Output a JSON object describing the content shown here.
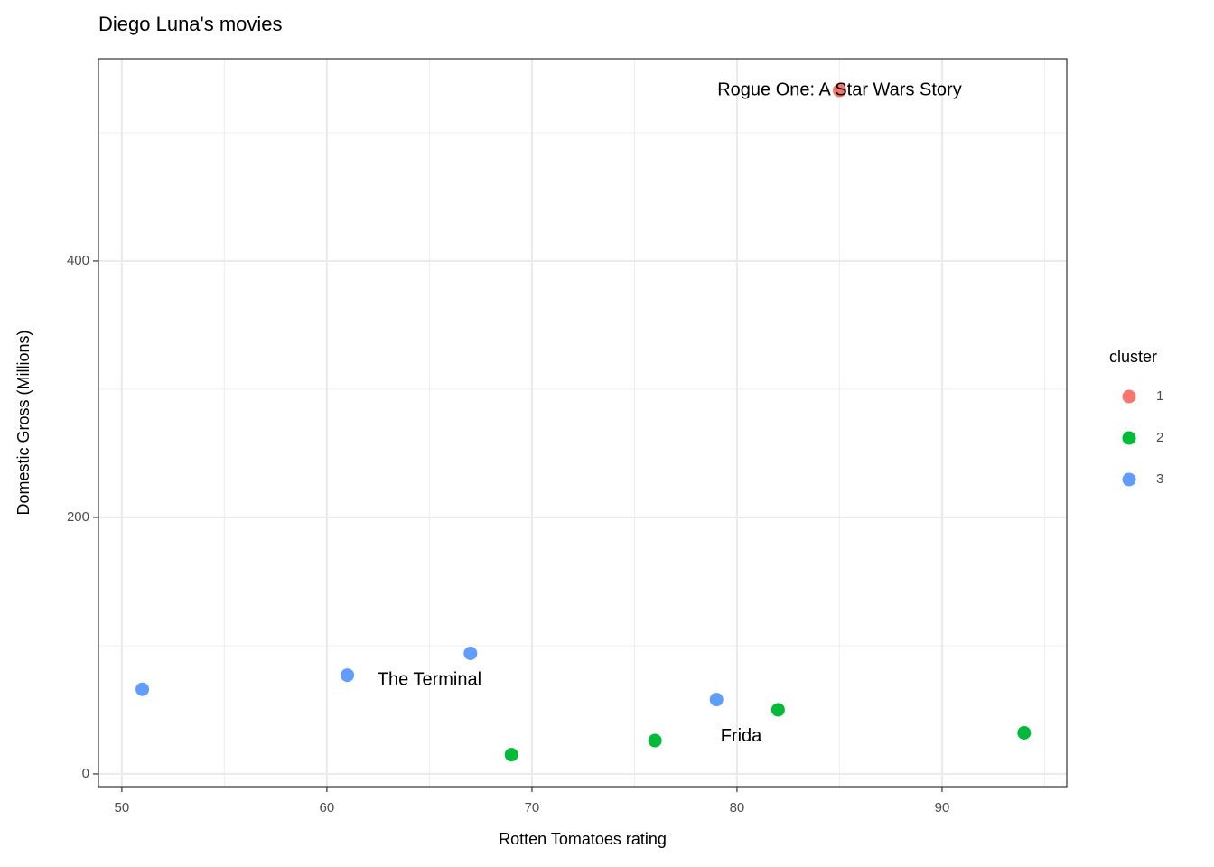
{
  "chart_data": {
    "type": "scatter",
    "title": "Diego Luna's movies",
    "x_label": "Rotten Tomatoes rating",
    "y_label": "Domestic Gross (Millions)",
    "legend_title": "cluster",
    "series": [
      {
        "name": "1",
        "color": "#F8766D",
        "x": [
          85
        ],
        "values": [
          533
        ]
      },
      {
        "name": "2",
        "color": "#00BA38",
        "x": [
          69,
          76,
          82,
          94
        ],
        "values": [
          15,
          26,
          50,
          32
        ]
      },
      {
        "name": "3",
        "color": "#619CFF",
        "x": [
          51,
          61,
          67,
          79
        ],
        "values": [
          66,
          77,
          94,
          58
        ]
      }
    ],
    "annotations": [
      {
        "text": "Rogue One: A Star Wars Story",
        "x": 85,
        "y": 533
      },
      {
        "text": "The Terminal",
        "x": 65,
        "y": 73
      },
      {
        "text": "Frida",
        "x": 80.2,
        "y": 29
      }
    ],
    "xlim": [
      48.86,
      96.08
    ],
    "ylim": [
      -9.9,
      557.7
    ],
    "xticks": [
      50,
      60,
      70,
      80,
      90
    ],
    "yticks": [
      0,
      200,
      400
    ],
    "grid": true,
    "legend": "right"
  }
}
